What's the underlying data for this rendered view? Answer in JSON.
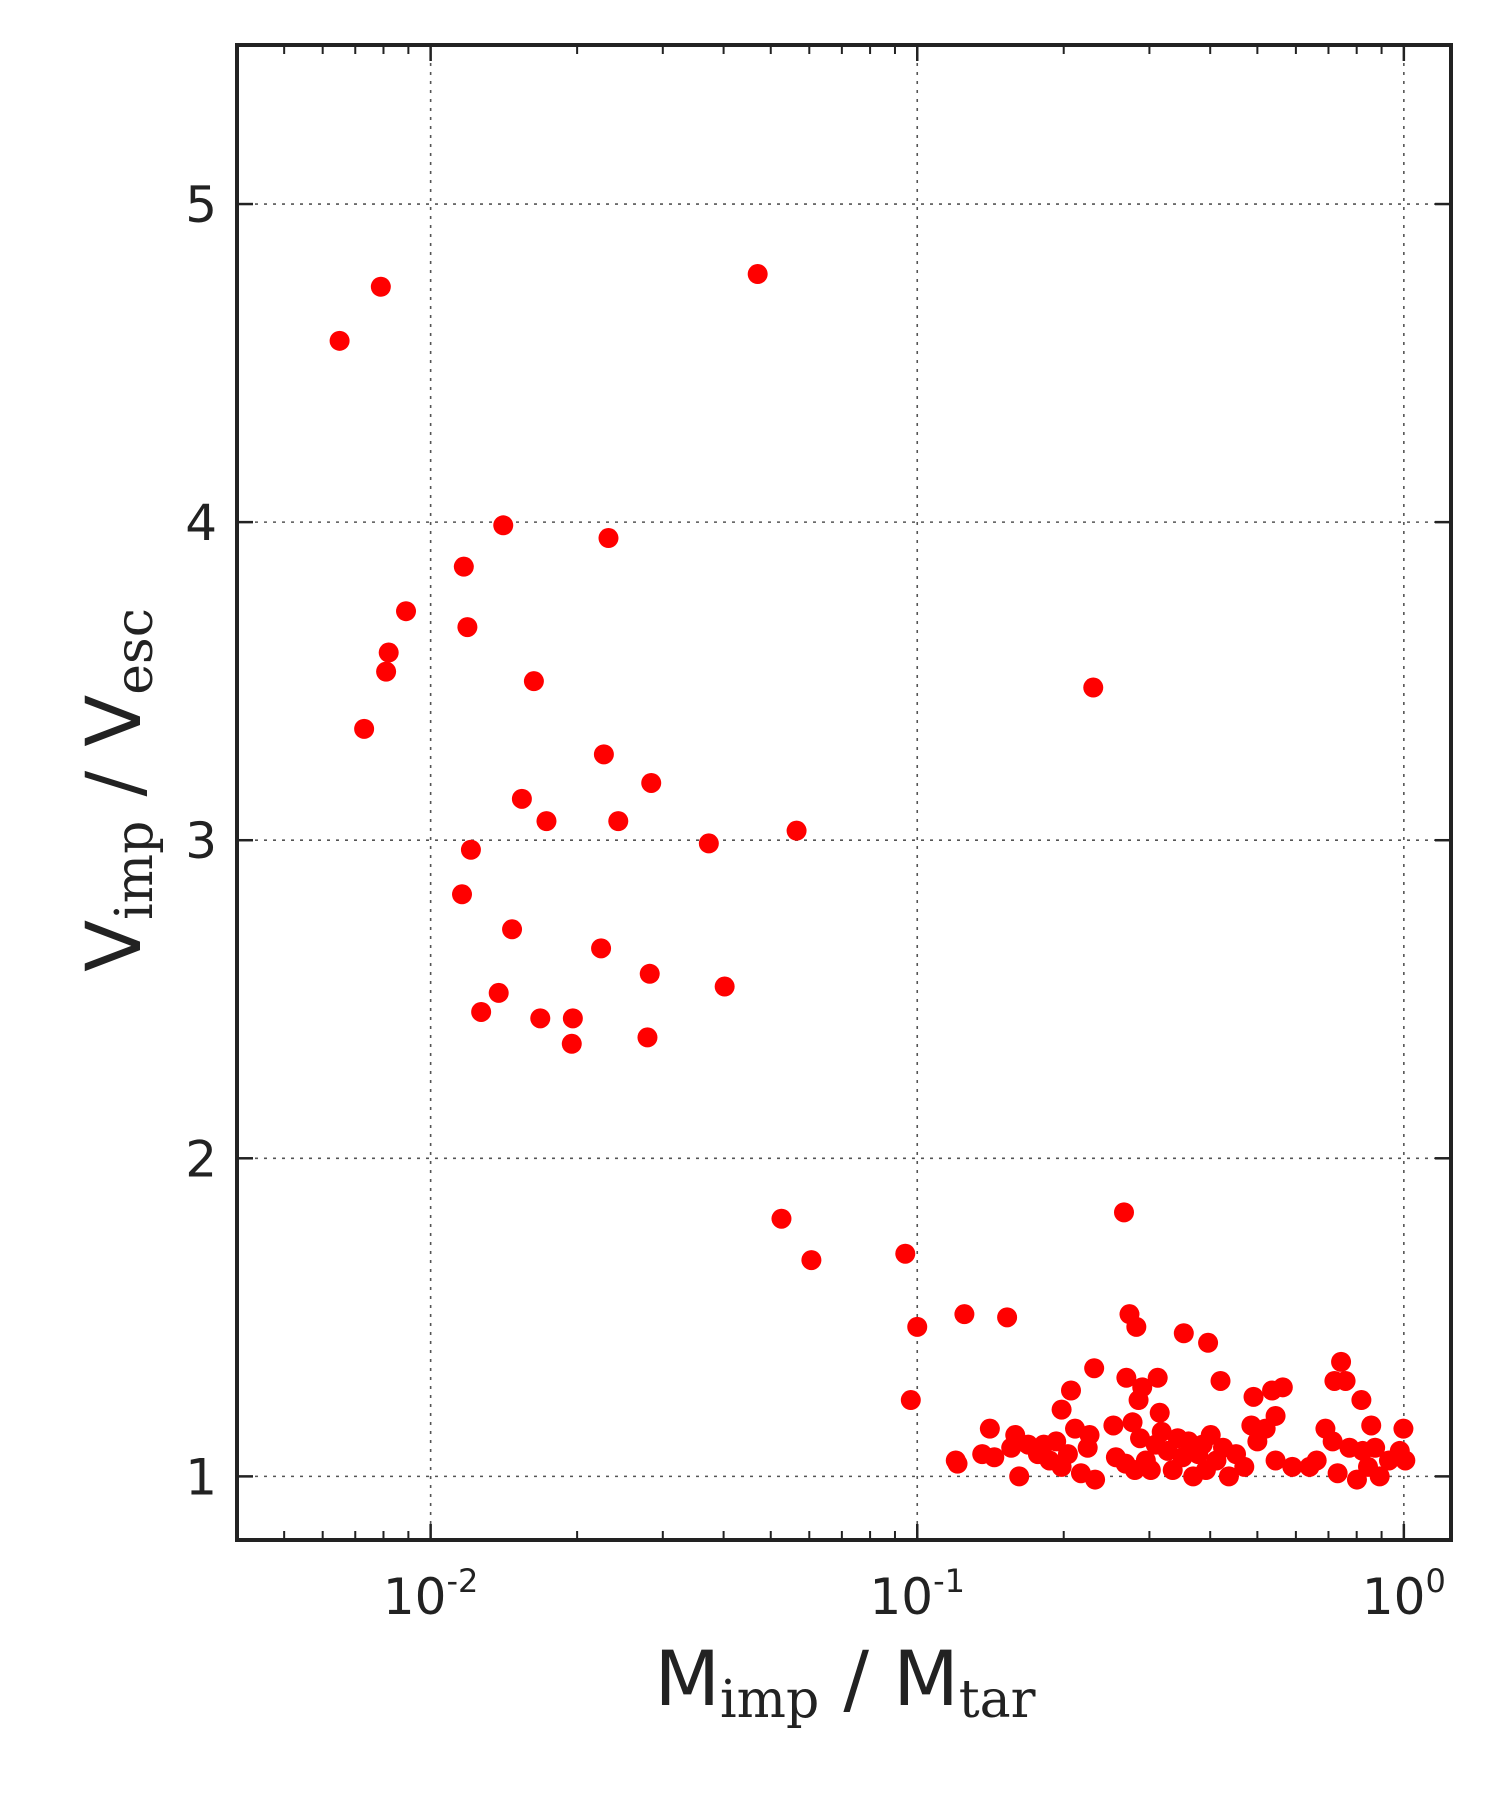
{
  "chart_data": {
    "type": "scatter",
    "x_scale": "log",
    "xlim": [
      0.004,
      1.25
    ],
    "ylim": [
      0.8,
      5.5
    ],
    "grid": true,
    "marker_color": "#ff0000",
    "xlabel": {
      "base": "M",
      "sub": "imp",
      "mid": " / M",
      "sub2": "tar"
    },
    "ylabel": {
      "base": "V",
      "sub": "imp",
      "mid": " / V",
      "sub2": "esc"
    },
    "x_ticks": [
      {
        "value": 0.01,
        "base": "10",
        "exp": "-2"
      },
      {
        "value": 0.1,
        "base": "10",
        "exp": "-1"
      },
      {
        "value": 1,
        "base": "10",
        "exp": "0"
      }
    ],
    "y_ticks": [
      {
        "value": 1,
        "label": "1"
      },
      {
        "value": 2,
        "label": "2"
      },
      {
        "value": 3,
        "label": "3"
      },
      {
        "value": 4,
        "label": "4"
      },
      {
        "value": 5,
        "label": "5"
      }
    ],
    "points": [
      [
        0.0065,
        4.57
      ],
      [
        0.0079,
        4.74
      ],
      [
        0.047,
        4.78
      ],
      [
        0.0073,
        3.35
      ],
      [
        0.0081,
        3.53
      ],
      [
        0.0082,
        3.59
      ],
      [
        0.0089,
        3.72
      ],
      [
        0.0117,
        3.86
      ],
      [
        0.0119,
        3.67
      ],
      [
        0.0141,
        3.99
      ],
      [
        0.0232,
        3.95
      ],
      [
        0.0163,
        3.5
      ],
      [
        0.23,
        3.48
      ],
      [
        0.0154,
        3.13
      ],
      [
        0.0173,
        3.06
      ],
      [
        0.0227,
        3.27
      ],
      [
        0.0243,
        3.06
      ],
      [
        0.0284,
        3.18
      ],
      [
        0.0373,
        2.99
      ],
      [
        0.0565,
        3.03
      ],
      [
        0.0121,
        2.97
      ],
      [
        0.0116,
        2.83
      ],
      [
        0.0147,
        2.72
      ],
      [
        0.0224,
        2.66
      ],
      [
        0.0282,
        2.58
      ],
      [
        0.0402,
        2.54
      ],
      [
        0.0127,
        2.46
      ],
      [
        0.0138,
        2.52
      ],
      [
        0.0168,
        2.44
      ],
      [
        0.0196,
        2.44
      ],
      [
        0.0195,
        2.36
      ],
      [
        0.0279,
        2.38
      ],
      [
        0.0526,
        1.81
      ],
      [
        0.0606,
        1.68
      ],
      [
        0.0945,
        1.7
      ],
      [
        0.266,
        1.83
      ],
      [
        0.1,
        1.47
      ],
      [
        0.125,
        1.51
      ],
      [
        0.153,
        1.5
      ],
      [
        0.097,
        1.24
      ],
      [
        0.273,
        1.51
      ],
      [
        0.282,
        1.47
      ],
      [
        0.353,
        1.45
      ],
      [
        0.396,
        1.42
      ],
      [
        0.231,
        1.34
      ],
      [
        0.269,
        1.31
      ],
      [
        0.312,
        1.31
      ],
      [
        0.42,
        1.3
      ],
      [
        0.29,
        1.28
      ],
      [
        0.285,
        1.24
      ],
      [
        0.207,
        1.27
      ],
      [
        0.491,
        1.25
      ],
      [
        0.536,
        1.27
      ],
      [
        0.564,
        1.28
      ],
      [
        0.72,
        1.3
      ],
      [
        0.743,
        1.36
      ],
      [
        0.759,
        1.3
      ],
      [
        0.818,
        1.24
      ],
      [
        0.198,
        1.21
      ],
      [
        0.315,
        1.2
      ],
      [
        0.545,
        1.19
      ],
      [
        0.486,
        1.16
      ],
      [
        0.253,
        1.16
      ],
      [
        0.277,
        1.17
      ],
      [
        0.12,
        1.05
      ],
      [
        0.121,
        1.04
      ],
      [
        0.136,
        1.07
      ],
      [
        0.141,
        1.15
      ],
      [
        0.144,
        1.06
      ],
      [
        0.156,
        1.09
      ],
      [
        0.159,
        1.13
      ],
      [
        0.162,
        1.0
      ],
      [
        0.169,
        1.1
      ],
      [
        0.177,
        1.07
      ],
      [
        0.182,
        1.1
      ],
      [
        0.187,
        1.05
      ],
      [
        0.193,
        1.11
      ],
      [
        0.198,
        1.03
      ],
      [
        0.204,
        1.07
      ],
      [
        0.211,
        1.15
      ],
      [
        0.217,
        1.01
      ],
      [
        0.224,
        1.09
      ],
      [
        0.226,
        1.13
      ],
      [
        0.232,
        0.99
      ],
      [
        0.256,
        1.06
      ],
      [
        0.268,
        1.04
      ],
      [
        0.28,
        1.02
      ],
      [
        0.287,
        1.12
      ],
      [
        0.295,
        1.05
      ],
      [
        0.302,
        1.02
      ],
      [
        0.309,
        1.1
      ],
      [
        0.318,
        1.14
      ],
      [
        0.327,
        1.08
      ],
      [
        0.335,
        1.02
      ],
      [
        0.343,
        1.12
      ],
      [
        0.351,
        1.06
      ],
      [
        0.361,
        1.11
      ],
      [
        0.369,
        1.0
      ],
      [
        0.378,
        1.07
      ],
      [
        0.386,
        1.1
      ],
      [
        0.392,
        1.02
      ],
      [
        0.401,
        1.13
      ],
      [
        0.412,
        1.05
      ],
      [
        0.425,
        1.09
      ],
      [
        0.437,
        1.0
      ],
      [
        0.452,
        1.07
      ],
      [
        0.47,
        1.03
      ],
      [
        0.5,
        1.11
      ],
      [
        0.52,
        1.15
      ],
      [
        0.545,
        1.05
      ],
      [
        0.59,
        1.03
      ],
      [
        0.64,
        1.03
      ],
      [
        0.662,
        1.05
      ],
      [
        0.69,
        1.15
      ],
      [
        0.714,
        1.11
      ],
      [
        0.731,
        1.01
      ],
      [
        0.773,
        1.09
      ],
      [
        0.801,
        0.99
      ],
      [
        0.823,
        1.08
      ],
      [
        0.844,
        1.03
      ],
      [
        0.857,
        1.16
      ],
      [
        0.873,
        1.09
      ],
      [
        0.892,
        1.0
      ],
      [
        0.932,
        1.05
      ],
      [
        0.981,
        1.08
      ],
      [
        0.998,
        1.15
      ],
      [
        1.007,
        1.05
      ]
    ]
  }
}
